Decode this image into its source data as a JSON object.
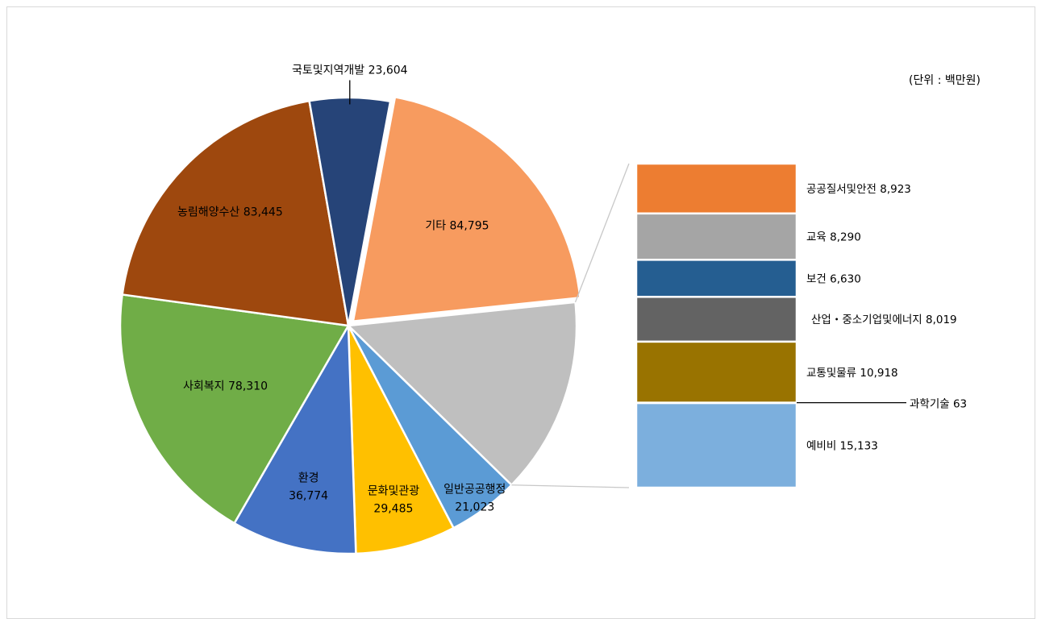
{
  "chart_data": {
    "type": "pie",
    "unit_note": "(단위 : 백만원)",
    "slices": [
      {
        "label": "기타",
        "value": 84795,
        "value_text": "84,795",
        "color": "#F79B5F"
      },
      {
        "label": "일반공공행정",
        "value": 21023,
        "value_text": "21,023",
        "color": "#5B9BD5"
      },
      {
        "label": "문화및관광",
        "value": 29485,
        "value_text": "29,485",
        "color": "#FFC000"
      },
      {
        "label": "환경",
        "value": 36774,
        "value_text": "36,774",
        "color": "#4472C4"
      },
      {
        "label": "사회복지",
        "value": 78310,
        "value_text": "78,310",
        "color": "#70AD47"
      },
      {
        "label": "농림해양수산",
        "value": 83445,
        "value_text": "83,445",
        "color": "#9E480E"
      },
      {
        "label": "국토및지역개발",
        "value": 23604,
        "value_text": "23,604",
        "color": "#264478"
      }
    ],
    "breakout": {
      "parent": "기타",
      "segments": [
        {
          "label": "공공질서및안전",
          "value": 8923,
          "value_text": "8,923",
          "color": "#ED7D31"
        },
        {
          "label": "교육",
          "value": 8290,
          "value_text": "8,290",
          "color": "#A5A5A5"
        },
        {
          "label": "보건",
          "value": 6630,
          "value_text": "6,630",
          "color": "#255E91"
        },
        {
          "label": "산업・중소기업및에너지",
          "value": 8019,
          "value_text": "8,019",
          "color": "#636363"
        },
        {
          "label": "교통및물류",
          "value": 10918,
          "value_text": "10,918",
          "color": "#997300"
        },
        {
          "label": "과학기술",
          "value": 63,
          "value_text": "63",
          "color": "#264478"
        },
        {
          "label": "예비비",
          "value": 15133,
          "value_text": "15,133",
          "color": "#7CAFDD"
        }
      ]
    },
    "legend": "none"
  }
}
